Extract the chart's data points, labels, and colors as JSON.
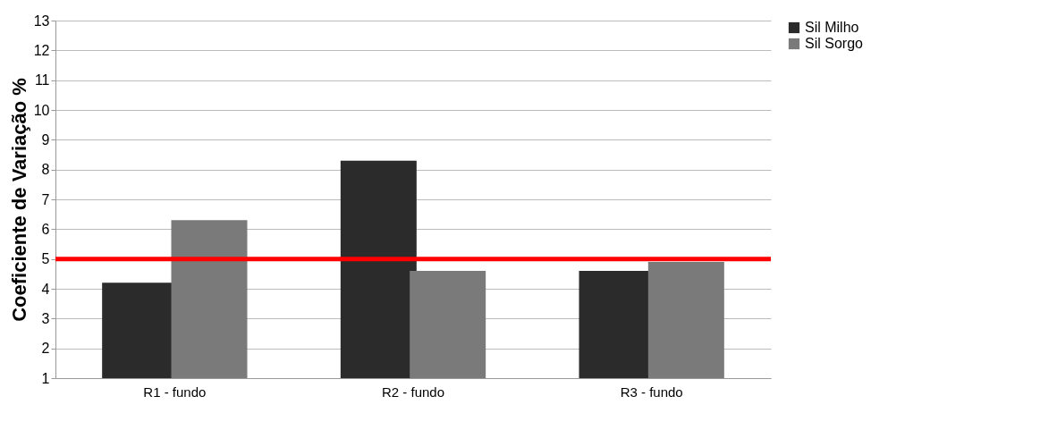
{
  "chart_data": {
    "type": "bar",
    "ylabel": "Coeficiente de Variação %",
    "categories": [
      "R1 - fundo",
      "R2 - fundo",
      "R3 - fundo"
    ],
    "series": [
      {
        "name": "Sil Milho",
        "color": "#2b2b2b",
        "values": [
          4.2,
          8.3,
          4.6
        ]
      },
      {
        "name": "Sil Sorgo",
        "color": "#7a7a7a",
        "values": [
          6.3,
          4.6,
          4.9
        ]
      }
    ],
    "ylim": [
      1,
      13
    ],
    "yticks": [
      1,
      2,
      3,
      4,
      5,
      6,
      7,
      8,
      9,
      10,
      11,
      12,
      13
    ],
    "ref_lines": [
      {
        "axis": "y",
        "value": 5,
        "color": "#ff0000"
      }
    ],
    "grid": "y",
    "legend": "right"
  }
}
